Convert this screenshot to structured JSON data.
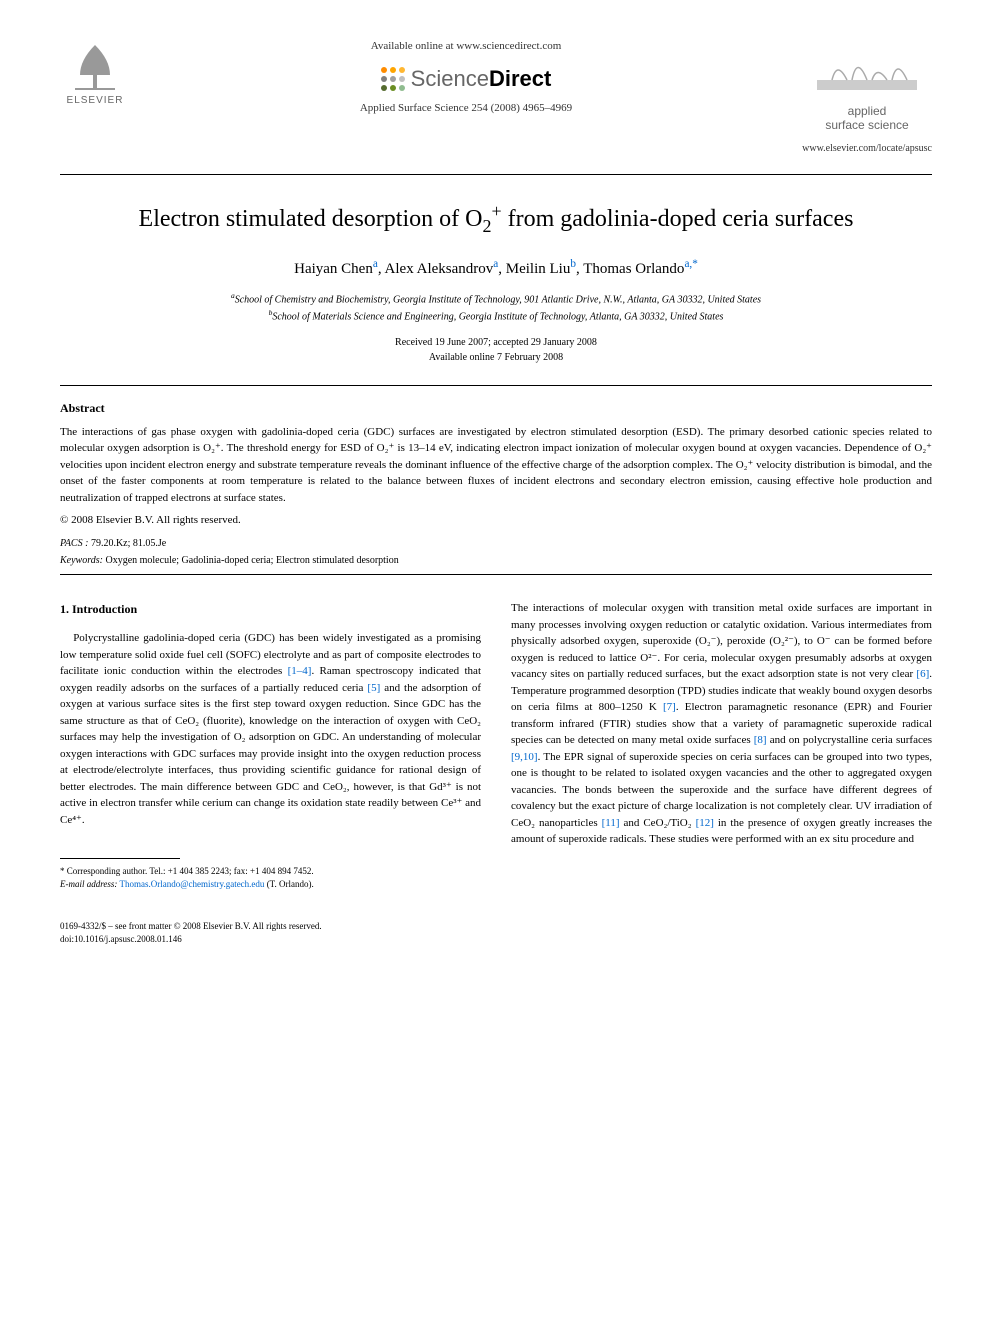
{
  "header": {
    "publisher_name": "ELSEVIER",
    "available_text": "Available online at www.sciencedirect.com",
    "sciencedirect": {
      "part1": "Science",
      "part2": "Direct"
    },
    "sd_dot_colors": [
      "#ff8c00",
      "#ffa500",
      "#ffb732",
      "#808080",
      "#a0a0a0",
      "#c0c0c0",
      "#556b2f",
      "#6b8e23",
      "#8fbc8f"
    ],
    "journal_name_line1": "applied",
    "journal_name_line2": "surface science",
    "citation": "Applied Surface Science 254 (2008) 4965–4969",
    "journal_url": "www.elsevier.com/locate/apsusc"
  },
  "title": {
    "pre": "Electron stimulated desorption of O",
    "sub": "2",
    "sup": "+",
    "post": " from gadolinia-doped ceria surfaces"
  },
  "authors": [
    {
      "name": "Haiyan Chen",
      "aff": "a"
    },
    {
      "name": "Alex Aleksandrov",
      "aff": "a"
    },
    {
      "name": "Meilin Liu",
      "aff": "b"
    },
    {
      "name": "Thomas Orlando",
      "aff": "a,",
      "corr": "*"
    }
  ],
  "affiliations": {
    "a": "School of Chemistry and Biochemistry, Georgia Institute of Technology, 901 Atlantic Drive, N.W., Atlanta, GA 30332, United States",
    "b": "School of Materials Science and Engineering, Georgia Institute of Technology, Atlanta, GA 30332, United States"
  },
  "dates": {
    "received": "Received 19 June 2007; accepted 29 January 2008",
    "online": "Available online 7 February 2008"
  },
  "abstract": {
    "heading": "Abstract",
    "text": "The interactions of gas phase oxygen with gadolinia-doped ceria (GDC) surfaces are investigated by electron stimulated desorption (ESD). The primary desorbed cationic species related to molecular oxygen adsorption is O₂⁺. The threshold energy for ESD of O₂⁺ is 13–14 eV, indicating electron impact ionization of molecular oxygen bound at oxygen vacancies. Dependence of O₂⁺ velocities upon incident electron energy and substrate temperature reveals the dominant influence of the effective charge of the adsorption complex. The O₂⁺ velocity distribution is bimodal, and the onset of the faster components at room temperature is related to the balance between fluxes of incident electrons and secondary electron emission, causing effective hole production and neutralization of trapped electrons at surface states.",
    "copyright": "© 2008 Elsevier B.V. All rights reserved."
  },
  "pacs": {
    "label": "PACS :",
    "values": "79.20.Kz; 81.05.Je"
  },
  "keywords": {
    "label": "Keywords:",
    "values": "Oxygen molecule; Gadolinia-doped ceria; Electron stimulated desorption"
  },
  "body": {
    "section_heading": "1. Introduction",
    "col1_p1": "Polycrystalline gadolinia-doped ceria (GDC) has been widely investigated as a promising low temperature solid oxide fuel cell (SOFC) electrolyte and as part of composite electrodes to facilitate ionic conduction within the electrodes [1–4]. Raman spectroscopy indicated that oxygen readily adsorbs on the surfaces of a partially reduced ceria [5] and the adsorption of oxygen at various surface sites is the first step toward oxygen reduction. Since GDC has the same structure as that of CeO₂ (fluorite), knowledge on the interaction of oxygen with CeO₂ surfaces may help the investigation of O₂ adsorption on GDC. An understanding of molecular oxygen interactions with GDC surfaces may provide insight into the oxygen reduction process at electrode/electrolyte interfaces, thus providing scientific guidance for rational design of better electrodes. The main difference between GDC and CeO₂, however, is that Gd³⁺ is not active in electron transfer while cerium can change its oxidation state readily between Ce³⁺ and Ce⁴⁺.",
    "col2_p1": "The interactions of molecular oxygen with transition metal oxide surfaces are important in many processes involving oxygen reduction or catalytic oxidation. Various intermediates from physically adsorbed oxygen, superoxide (O₂⁻), peroxide (O₂²⁻), to O⁻ can be formed before oxygen is reduced to lattice O²⁻. For ceria, molecular oxygen presumably adsorbs at oxygen vacancy sites on partially reduced surfaces, but the exact adsorption state is not very clear [6]. Temperature programmed desorption (TPD) studies indicate that weakly bound oxygen desorbs on ceria films at 800–1250 K [7]. Electron paramagnetic resonance (EPR) and Fourier transform infrared (FTIR) studies show that a variety of paramagnetic superoxide radical species can be detected on many metal oxide surfaces [8] and on polycrystalline ceria surfaces [9,10]. The EPR signal of superoxide species on ceria surfaces can be grouped into two types, one is thought to be related to isolated oxygen vacancies and the other to aggregated oxygen vacancies. The bonds between the superoxide and the surface have different degrees of covalency but the exact picture of charge localization is not completely clear. UV irradiation of CeO₂ nanoparticles [11] and CeO₂/TiO₂ [12] in the presence of oxygen greatly increases the amount of superoxide radicals. These studies were performed with an ex situ procedure and"
  },
  "footnote": {
    "corr_label": "* Corresponding author. Tel.: +1 404 385 2243; fax: +1 404 894 7452.",
    "email_label": "E-mail address:",
    "email": "Thomas.Orlando@chemistry.gatech.edu",
    "email_suffix": "(T. Orlando)."
  },
  "footer": {
    "issn_line": "0169-4332/$ – see front matter © 2008 Elsevier B.V. All rights reserved.",
    "doi": "doi:10.1016/j.apsusc.2008.01.146"
  },
  "colors": {
    "link": "#0066cc",
    "text": "#000000",
    "muted": "#666666"
  }
}
